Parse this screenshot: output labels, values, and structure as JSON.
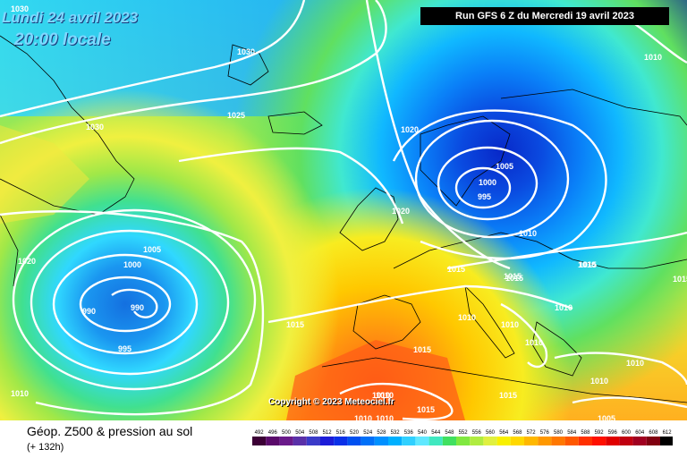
{
  "overlay": {
    "date": "Lundi 24 avril 2023",
    "time": "20:00 locale",
    "run": "Run GFS 6 Z du Mercredi 19 avril 2023",
    "copyright": "Copyright © 2023 Meteociel.fr"
  },
  "footer": {
    "product": "Géop. Z500 & pression au sol",
    "step": "(+ 132h)",
    "scale_values": [
      "492",
      "496",
      "500",
      "504",
      "508",
      "512",
      "516",
      "520",
      "524",
      "528",
      "532",
      "536",
      "540",
      "544",
      "548",
      "552",
      "556",
      "560",
      "564",
      "568",
      "572",
      "576",
      "580",
      "584",
      "588",
      "592",
      "596",
      "600",
      "604",
      "608",
      "612"
    ],
    "scale_colors": [
      "#3b0035",
      "#5a0a6a",
      "#6a1a8a",
      "#5a30a8",
      "#3a3ac8",
      "#1c1cd8",
      "#0a30e8",
      "#0050f0",
      "#0070f8",
      "#0090ff",
      "#00b0ff",
      "#30d0ff",
      "#60e8ff",
      "#40e8c0",
      "#40e060",
      "#80e840",
      "#b0ec40",
      "#e0f040",
      "#f8f000",
      "#ffd800",
      "#ffb800",
      "#ff9800",
      "#ff7800",
      "#ff5800",
      "#ff3000",
      "#ff1000",
      "#e00000",
      "#c00010",
      "#a00020",
      "#800010",
      "#000000"
    ]
  },
  "isobars": [
    {
      "label": "1030"
    },
    {
      "label": "1030"
    },
    {
      "label": "1030"
    },
    {
      "label": "1025"
    },
    {
      "label": "1020"
    },
    {
      "label": "1020"
    },
    {
      "label": "1020"
    },
    {
      "label": "1015"
    },
    {
      "label": "1005"
    },
    {
      "label": "1000"
    },
    {
      "label": "995"
    },
    {
      "label": "1010"
    },
    {
      "label": "1015"
    },
    {
      "label": "1015"
    },
    {
      "label": "1015"
    },
    {
      "label": "1010"
    },
    {
      "label": "1010"
    },
    {
      "label": "1010"
    },
    {
      "label": "1005"
    },
    {
      "label": "1000"
    },
    {
      "label": "990"
    },
    {
      "label": "990"
    },
    {
      "label": "995"
    },
    {
      "label": "1015"
    },
    {
      "label": "1015"
    },
    {
      "label": "1010"
    },
    {
      "label": "1010"
    },
    {
      "label": "1010"
    },
    {
      "label": "1010"
    },
    {
      "label": "1015"
    },
    {
      "label": "1010"
    },
    {
      "label": "1010"
    },
    {
      "label": "1010"
    },
    {
      "label": "1010"
    },
    {
      "label": "1015"
    },
    {
      "label": "1010"
    },
    {
      "label": "1005"
    },
    {
      "label": "1005"
    },
    {
      "label": "1015"
    },
    {
      "label": "1010"
    }
  ]
}
